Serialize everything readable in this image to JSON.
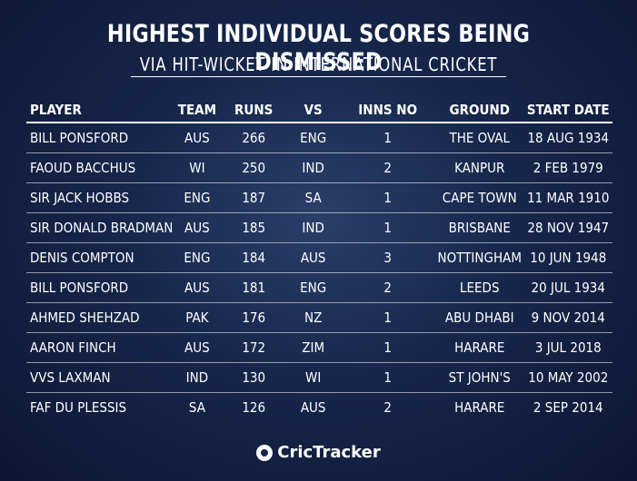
{
  "title": "HIGHEST INDIVIDUAL SCORES BEING DISMISSED",
  "subtitle": "VIA HIT-WICKET IN INTERNATIONAL CRICKET",
  "headers": {
    "player": "PLAYER",
    "team": "TEAM",
    "runs": "RUNS",
    "vs": "VS",
    "inns_no": "INNS NO",
    "ground": "GROUND",
    "start_date": "START DATE"
  },
  "rows": [
    {
      "player": "BILL PONSFORD",
      "team": "AUS",
      "runs": "266",
      "vs": "ENG",
      "inns_no": "1",
      "ground": "THE OVAL",
      "start_date": "18 AUG 1934"
    },
    {
      "player": "FAOUD BACCHUS",
      "team": "WI",
      "runs": "250",
      "vs": "IND",
      "inns_no": "2",
      "ground": "KANPUR",
      "start_date": "2 FEB 1979"
    },
    {
      "player": "SIR JACK HOBBS",
      "team": "ENG",
      "runs": "187",
      "vs": "SA",
      "inns_no": "1",
      "ground": "CAPE TOWN",
      "start_date": "11 MAR 1910"
    },
    {
      "player": "SIR DONALD BRADMAN",
      "team": "AUS",
      "runs": "185",
      "vs": "IND",
      "inns_no": "1",
      "ground": "BRISBANE",
      "start_date": "28 NOV 1947"
    },
    {
      "player": "DENIS COMPTON",
      "team": "ENG",
      "runs": "184",
      "vs": "AUS",
      "inns_no": "3",
      "ground": "NOTTINGHAM",
      "start_date": "10 JUN 1948"
    },
    {
      "player": "BILL PONSFORD",
      "team": "AUS",
      "runs": "181",
      "vs": "ENG",
      "inns_no": "2",
      "ground": "LEEDS",
      "start_date": "20 JUL 1934"
    },
    {
      "player": "AHMED SHEHZAD",
      "team": "PAK",
      "runs": "176",
      "vs": "NZ",
      "inns_no": "1",
      "ground": "ABU DHABI",
      "start_date": "9 NOV 2014"
    },
    {
      "player": "AARON FINCH",
      "team": "AUS",
      "runs": "172",
      "vs": "ZIM",
      "inns_no": "1",
      "ground": "HARARE",
      "start_date": "3 JUL 2018"
    },
    {
      "player": "VVS LAXMAN",
      "team": "IND",
      "runs": "130",
      "vs": "WI",
      "inns_no": "1",
      "ground": "ST JOHN'S",
      "start_date": "10 MAY 2002"
    },
    {
      "player": "FAF DU PLESSIS",
      "team": "SA",
      "runs": "126",
      "vs": "AUS",
      "inns_no": "2",
      "ground": "HARARE",
      "start_date": "2 SEP 2014"
    }
  ],
  "logo": {
    "text": "CricTracker",
    "icon": "crictracker-logo-icon"
  }
}
